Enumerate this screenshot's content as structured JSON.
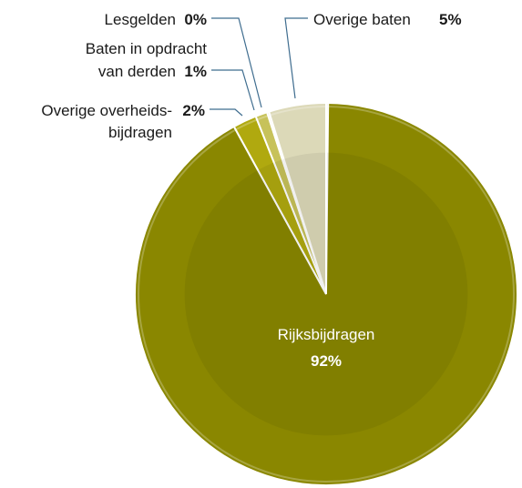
{
  "chart_data": {
    "type": "pie",
    "categories": [
      "Rijksbijdragen",
      "Overige overheids-bijdragen",
      "Baten in opdracht van derden",
      "Lesgelden",
      "Overige baten"
    ],
    "values": [
      92,
      2,
      1,
      0,
      5
    ],
    "labels": {
      "rijks_name": "Rijksbijdragen",
      "rijks_pct": "92%",
      "overheid_line1": "Overige overheids-",
      "overheid_line2": "bijdragen",
      "overheid_pct": "2%",
      "derden_line1": "Baten in opdracht",
      "derden_line2": "van derden",
      "derden_pct": "1%",
      "lesgelden_name": "Lesgelden",
      "lesgelden_pct": "0%",
      "overig_name": "Overige baten",
      "overig_pct": "5%"
    },
    "colors": {
      "Rijksbijdragen": "#8a8700",
      "Overige overheids-bijdragen": "#b0a90f",
      "Baten in opdracht van derden": "#c7c25a",
      "Lesgelden": "#d4d08a",
      "Overige baten": "#dcd9b8",
      "leader": "#3f6d8f"
    }
  }
}
